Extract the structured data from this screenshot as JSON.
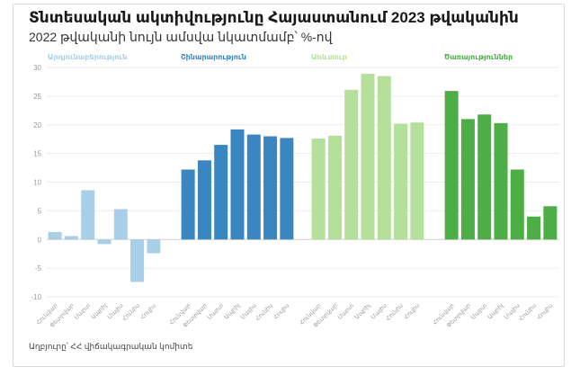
{
  "header": {
    "title": "Տնտեսական ակտիվությունը Հայաստանում 2023 թվականին",
    "subtitle": "2022 թվականի նույն ամսվա նկատմամբ՝ %-ով"
  },
  "footer": {
    "source": "Աղբյուրը՝ ՀՀ վիճակագրական կոմիտե"
  },
  "chart_data": {
    "type": "bar",
    "title": "Տնտեսական ակտիվությունը Հայաստանում 2023 թվականին",
    "subtitle": "2022 թվականի նույն ամսվա նկատմամբ՝ %-ով",
    "categories": [
      "Հունվար",
      "Փետրվար",
      "Մարտ",
      "Ապրիլ",
      "Մայիս",
      "Հունիս",
      "Հուլիս"
    ],
    "yticks": [
      30,
      25,
      20,
      15,
      10,
      5,
      0,
      -5,
      -10
    ],
    "ylim": [
      -10,
      30
    ],
    "grid": true,
    "series": [
      {
        "name": "Արդյունաբերություն",
        "color": "#a9cfe8",
        "values": [
          1.3,
          0.6,
          8.6,
          -0.8,
          5.3,
          -7.4,
          -2.4
        ]
      },
      {
        "name": "Շինարարություն",
        "color": "#3a86c0",
        "values": [
          12.2,
          13.8,
          16.5,
          19.2,
          18.3,
          18.0,
          17.7
        ]
      },
      {
        "name": "Առևտուր",
        "color": "#b5e09b",
        "values": [
          17.6,
          18.1,
          26.1,
          28.9,
          28.5,
          20.2,
          20.4
        ]
      },
      {
        "name": "Ծառայություններ",
        "color": "#4cae45",
        "values": [
          25.9,
          21.0,
          21.8,
          20.3,
          12.2,
          4.0,
          5.8
        ]
      }
    ]
  }
}
